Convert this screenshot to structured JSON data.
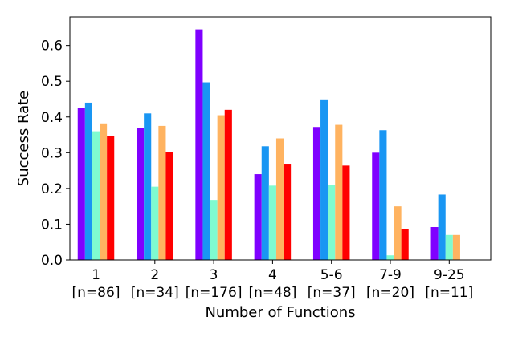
{
  "chart_data": {
    "type": "bar",
    "xlabel": "Number of Functions",
    "ylabel": "Success Rate",
    "ylim": [
      0,
      0.68
    ],
    "yticks": [
      "0.0",
      "0.1",
      "0.2",
      "0.3",
      "0.4",
      "0.5",
      "0.6"
    ],
    "grid": false,
    "categories": [
      {
        "label": "1",
        "sub": "[n=86]"
      },
      {
        "label": "2",
        "sub": "[n=34]"
      },
      {
        "label": "3",
        "sub": "[n=176]"
      },
      {
        "label": "4",
        "sub": "[n=48]"
      },
      {
        "label": "5-6",
        "sub": "[n=37]"
      },
      {
        "label": "7-9",
        "sub": "[n=20]"
      },
      {
        "label": "9-25",
        "sub": "[n=11]"
      }
    ],
    "series": [
      {
        "color": "#7f00ff",
        "values": [
          0.425,
          0.37,
          0.645,
          0.24,
          0.372,
          0.3,
          0.092
        ]
      },
      {
        "color": "#1996f3",
        "values": [
          0.44,
          0.41,
          0.497,
          0.318,
          0.447,
          0.363,
          0.183
        ]
      },
      {
        "color": "#7ffbd0",
        "values": [
          0.36,
          0.205,
          0.168,
          0.208,
          0.21,
          0.013,
          0.07
        ]
      },
      {
        "color": "#ffb360",
        "values": [
          0.382,
          0.375,
          0.405,
          0.34,
          0.378,
          0.15,
          0.07
        ]
      },
      {
        "color": "#ff0000",
        "values": [
          0.347,
          0.302,
          0.42,
          0.267,
          0.264,
          0.087,
          0
        ]
      }
    ]
  }
}
